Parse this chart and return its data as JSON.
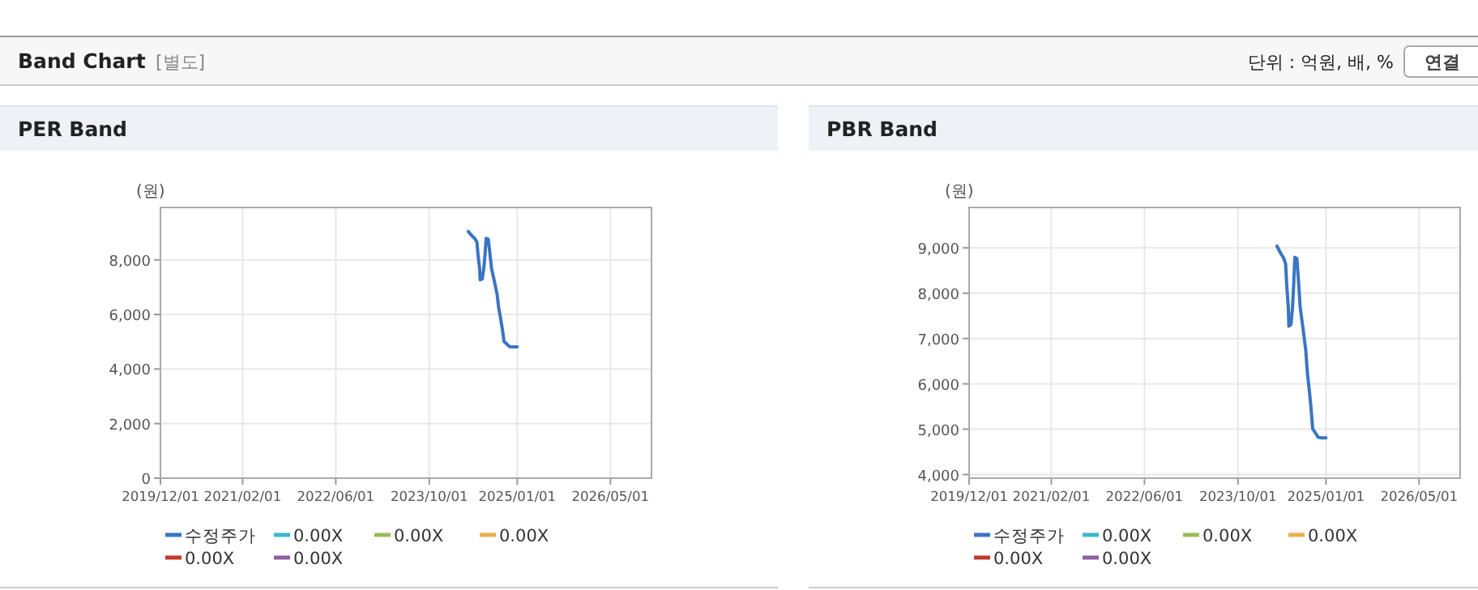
{
  "chart_data": [
    {
      "type": "other",
      "title": "Band Chart",
      "annotations": [
        "[별도]",
        "단위 : 억원, 배, %",
        "연결"
      ]
    },
    {
      "type": "line",
      "title": "PER Band",
      "ylabel": "(원)",
      "x": [
        "2024-04-21",
        "2024-05-10",
        "2024-05-24",
        "2024-06-05",
        "2024-06-11",
        "2024-06-19",
        "2024-06-22",
        "2024-07-03",
        "2024-07-11",
        "2024-07-17",
        "2024-07-23",
        "2024-08-03",
        "2024-08-09",
        "2024-08-20",
        "2024-09-04",
        "2024-09-18",
        "2024-09-26",
        "2024-10-08",
        "2024-10-16",
        "2024-10-24",
        "2024-11-05",
        "2024-11-22",
        "2024-12-06",
        "2025-01-01"
      ],
      "series": [
        {
          "name": "수정주가",
          "color": "#3a75c4",
          "values": [
            9040,
            8880,
            8790,
            8650,
            8170,
            7690,
            7270,
            7310,
            7690,
            8170,
            8790,
            8760,
            8400,
            7690,
            7210,
            6740,
            6260,
            5790,
            5430,
            5010,
            4930,
            4820,
            4810,
            4810
          ]
        },
        {
          "name": "0.00X",
          "color": "#3cb7c9",
          "values": [
            null,
            null,
            null,
            null,
            null,
            null,
            null,
            null,
            null,
            null,
            null,
            null,
            null,
            null,
            null,
            null,
            null,
            null,
            null,
            null,
            null,
            null,
            null,
            null
          ]
        },
        {
          "name": "0.00X",
          "color": "#98bb5b",
          "values": [
            null,
            null,
            null,
            null,
            null,
            null,
            null,
            null,
            null,
            null,
            null,
            null,
            null,
            null,
            null,
            null,
            null,
            null,
            null,
            null,
            null,
            null,
            null,
            null
          ]
        },
        {
          "name": "0.00X",
          "color": "#e8b04a",
          "values": [
            null,
            null,
            null,
            null,
            null,
            null,
            null,
            null,
            null,
            null,
            null,
            null,
            null,
            null,
            null,
            null,
            null,
            null,
            null,
            null,
            null,
            null,
            null,
            null
          ]
        },
        {
          "name": "0.00X",
          "color": "#c0392b",
          "values": [
            null,
            null,
            null,
            null,
            null,
            null,
            null,
            null,
            null,
            null,
            null,
            null,
            null,
            null,
            null,
            null,
            null,
            null,
            null,
            null,
            null,
            null,
            null,
            null
          ]
        },
        {
          "name": "0.00X",
          "color": "#8e5ea2",
          "values": [
            null,
            null,
            null,
            null,
            null,
            null,
            null,
            null,
            null,
            null,
            null,
            null,
            null,
            null,
            null,
            null,
            null,
            null,
            null,
            null,
            null,
            null,
            null,
            null
          ]
        }
      ],
      "xlim": [
        "2019-12-01",
        "2026-12-01"
      ],
      "xticks": [
        {
          "value": "2019-12-01",
          "label": "2019/12/01"
        },
        {
          "value": "2021-02-01",
          "label": "2021/02/01"
        },
        {
          "value": "2022-06-01",
          "label": "2022/06/01"
        },
        {
          "value": "2023-10-01",
          "label": "2023/10/01"
        },
        {
          "value": "2025-01-01",
          "label": "2025/01/01"
        },
        {
          "value": "2026-05-01",
          "label": "2026/05/01"
        }
      ],
      "ylim": [
        0,
        9920
      ],
      "yticks": [
        0,
        {
          "value": 2000,
          "label": "2,000"
        },
        {
          "value": 4000,
          "label": "4,000"
        },
        {
          "value": 6000,
          "label": "6,000"
        },
        {
          "value": 8000,
          "label": "8,000"
        }
      ],
      "grid": true,
      "legend": "bottom",
      "marker": "none",
      "line_style": "solid"
    },
    {
      "type": "line",
      "title": "PBR Band",
      "ylabel": "(원)",
      "x": [
        "2024-04-21",
        "2024-05-10",
        "2024-05-24",
        "2024-06-05",
        "2024-06-11",
        "2024-06-19",
        "2024-06-22",
        "2024-07-03",
        "2024-07-11",
        "2024-07-17",
        "2024-07-23",
        "2024-08-03",
        "2024-08-09",
        "2024-08-20",
        "2024-09-04",
        "2024-09-18",
        "2024-09-26",
        "2024-10-08",
        "2024-10-16",
        "2024-10-24",
        "2024-11-05",
        "2024-11-22",
        "2024-12-06",
        "2025-01-01"
      ],
      "series": [
        {
          "name": "수정주가",
          "color": "#3a75c4",
          "values": [
            9040,
            8880,
            8790,
            8650,
            8170,
            7690,
            7270,
            7310,
            7690,
            8170,
            8790,
            8760,
            8400,
            7690,
            7210,
            6740,
            6260,
            5790,
            5430,
            5010,
            4930,
            4820,
            4810,
            4810
          ]
        },
        {
          "name": "0.00X",
          "color": "#3cb7c9",
          "values": [
            null,
            null,
            null,
            null,
            null,
            null,
            null,
            null,
            null,
            null,
            null,
            null,
            null,
            null,
            null,
            null,
            null,
            null,
            null,
            null,
            null,
            null,
            null,
            null
          ]
        },
        {
          "name": "0.00X",
          "color": "#98bb5b",
          "values": [
            null,
            null,
            null,
            null,
            null,
            null,
            null,
            null,
            null,
            null,
            null,
            null,
            null,
            null,
            null,
            null,
            null,
            null,
            null,
            null,
            null,
            null,
            null,
            null
          ]
        },
        {
          "name": "0.00X",
          "color": "#e8b04a",
          "values": [
            null,
            null,
            null,
            null,
            null,
            null,
            null,
            null,
            null,
            null,
            null,
            null,
            null,
            null,
            null,
            null,
            null,
            null,
            null,
            null,
            null,
            null,
            null,
            null
          ]
        },
        {
          "name": "0.00X",
          "color": "#c0392b",
          "values": [
            null,
            null,
            null,
            null,
            null,
            null,
            null,
            null,
            null,
            null,
            null,
            null,
            null,
            null,
            null,
            null,
            null,
            null,
            null,
            null,
            null,
            null,
            null,
            null
          ]
        },
        {
          "name": "0.00X",
          "color": "#8e5ea2",
          "values": [
            null,
            null,
            null,
            null,
            null,
            null,
            null,
            null,
            null,
            null,
            null,
            null,
            null,
            null,
            null,
            null,
            null,
            null,
            null,
            null,
            null,
            null,
            null,
            null
          ]
        }
      ],
      "xlim": [
        "2019-12-01",
        "2026-12-01"
      ],
      "xticks": [
        {
          "value": "2019-12-01",
          "label": "2019/12/01"
        },
        {
          "value": "2021-02-01",
          "label": "2021/02/01"
        },
        {
          "value": "2022-06-01",
          "label": "2022/06/01"
        },
        {
          "value": "2023-10-01",
          "label": "2023/10/01"
        },
        {
          "value": "2025-01-01",
          "label": "2025/01/01"
        },
        {
          "value": "2026-05-01",
          "label": "2026/05/01"
        }
      ],
      "ylim": [
        3920,
        9890
      ],
      "yticks": [
        {
          "value": 4000,
          "label": "4,000"
        },
        {
          "value": 5000,
          "label": "5,000"
        },
        {
          "value": 6000,
          "label": "6,000"
        },
        {
          "value": 7000,
          "label": "7,000"
        },
        {
          "value": 8000,
          "label": "8,000"
        },
        {
          "value": 9000,
          "label": "9,000"
        }
      ],
      "grid": true,
      "legend": "bottom",
      "marker": "none",
      "line_style": "solid"
    }
  ]
}
